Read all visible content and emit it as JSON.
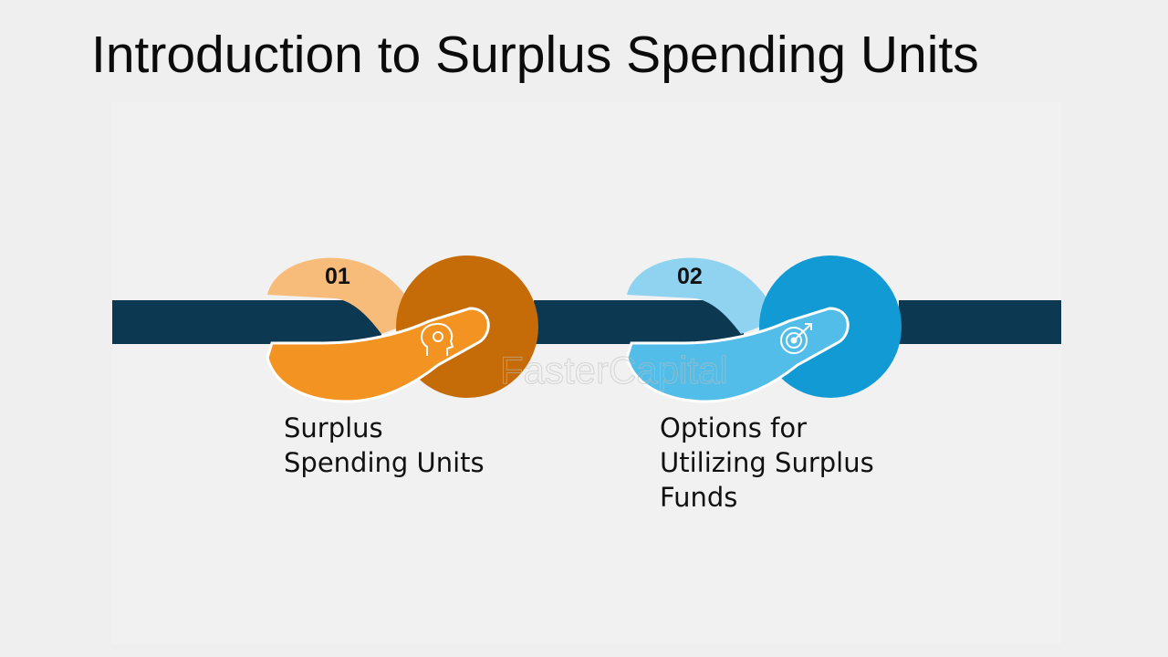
{
  "title": "Introduction to Surplus Spending Units",
  "watermark": "FasterCapital",
  "steps": [
    {
      "number": "01",
      "label": "Surplus\nSpending Units",
      "icon": "head-lightbulb-icon",
      "colors": {
        "light": "#f7bb7a",
        "dark": "#c56b08",
        "loop": "#f39321"
      }
    },
    {
      "number": "02",
      "label": "Options for\nUtilizing Surplus\nFunds",
      "icon": "target-arrow-icon",
      "colors": {
        "light": "#8fd3f1",
        "dark": "#129ad4",
        "loop": "#52bde9"
      }
    }
  ],
  "colors": {
    "rope": "#0d3852",
    "background": "#efefef"
  }
}
